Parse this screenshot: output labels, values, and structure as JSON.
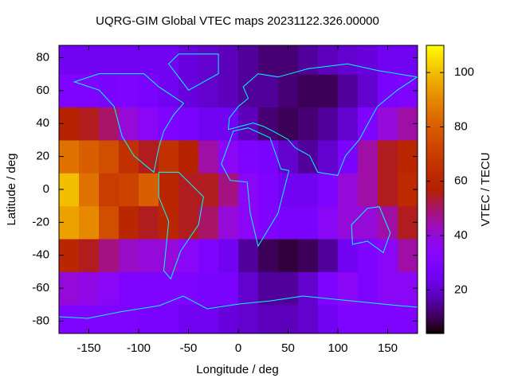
{
  "chart_data": {
    "type": "heatmap",
    "title": "UQRG-GIM Global VTEC maps 20231122.326.00000",
    "x_label": "Longitude / deg",
    "y_label": "Latitude / deg",
    "colorbar_label": "VTEC / TECU",
    "colormap": "gnuplot",
    "x": [
      -170,
      -150,
      -130,
      -110,
      -90,
      -70,
      -50,
      -30,
      -10,
      10,
      30,
      50,
      70,
      90,
      110,
      130,
      150,
      170
    ],
    "y": [
      -80,
      -60,
      -40,
      -20,
      0,
      20,
      40,
      60,
      80
    ],
    "values": [
      [
        30,
        30,
        30,
        30,
        28,
        28,
        25,
        25,
        22,
        20,
        18,
        18,
        20,
        25,
        30,
        30,
        30,
        30
      ],
      [
        40,
        38,
        35,
        30,
        30,
        30,
        30,
        28,
        28,
        20,
        15,
        15,
        20,
        30,
        35,
        30,
        35,
        35
      ],
      [
        60,
        55,
        48,
        42,
        40,
        40,
        35,
        30,
        25,
        15,
        10,
        8,
        10,
        15,
        25,
        30,
        35,
        45
      ],
      [
        95,
        90,
        75,
        60,
        55,
        60,
        55,
        50,
        40,
        35,
        30,
        28,
        28,
        35,
        40,
        40,
        45,
        55
      ],
      [
        100,
        85,
        70,
        72,
        80,
        60,
        55,
        55,
        48,
        35,
        30,
        25,
        25,
        30,
        40,
        45,
        55,
        62
      ],
      [
        85,
        80,
        75,
        65,
        55,
        65,
        58,
        45,
        35,
        30,
        28,
        20,
        15,
        20,
        28,
        45,
        55,
        60
      ],
      [
        58,
        55,
        50,
        40,
        35,
        30,
        28,
        25,
        25,
        18,
        12,
        10,
        12,
        15,
        20,
        30,
        40,
        45
      ],
      [
        30,
        30,
        28,
        30,
        28,
        25,
        22,
        20,
        18,
        15,
        15,
        12,
        10,
        10,
        15,
        20,
        28,
        30
      ],
      [
        25,
        25,
        25,
        25,
        25,
        25,
        22,
        20,
        18,
        15,
        12,
        12,
        15,
        18,
        20,
        22,
        25,
        25
      ]
    ],
    "xlim": [
      -180,
      180
    ],
    "ylim": [
      -87.5,
      87.5
    ],
    "xticks": [
      -150,
      -100,
      -50,
      0,
      50,
      100,
      150
    ],
    "yticks": [
      -80,
      -60,
      -40,
      -20,
      0,
      20,
      40,
      60,
      80
    ],
    "clim": [
      4,
      110
    ],
    "cticks": [
      20,
      40,
      60,
      80,
      100
    ]
  }
}
